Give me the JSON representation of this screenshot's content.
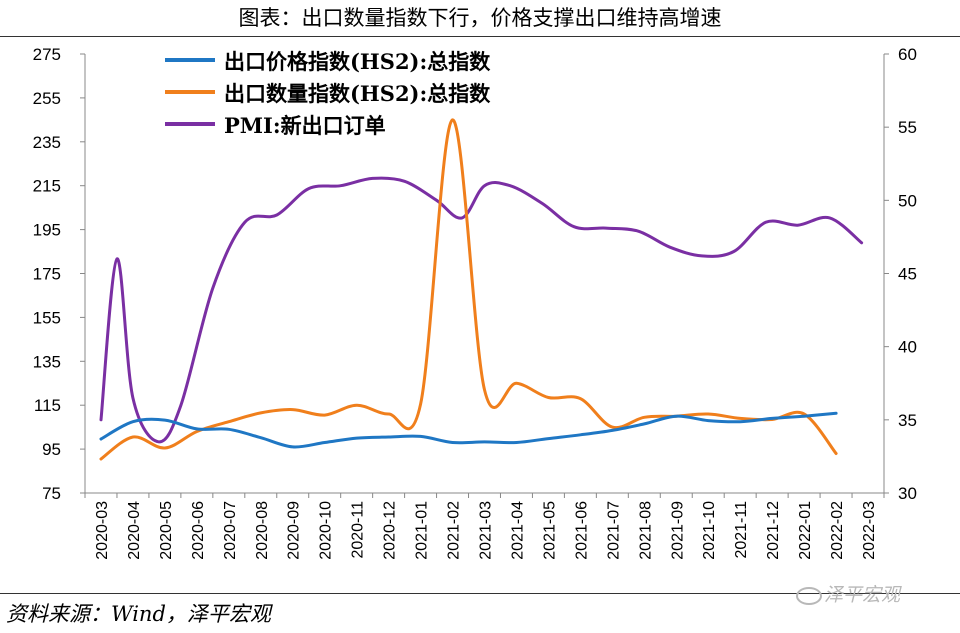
{
  "title": "图表：出口数量指数下行，价格支撑出口维持高增速",
  "source": "资料来源：Wind，泽平宏观",
  "watermark": "泽平宏观",
  "chart_data": {
    "type": "line",
    "categories": [
      "2020-03",
      "2020-04",
      "2020-05",
      "2020-06",
      "2020-07",
      "2020-08",
      "2020-09",
      "2020-10",
      "2020-11",
      "2020-12",
      "2021-01",
      "2021-02",
      "2021-03",
      "2021-04",
      "2021-05",
      "2021-06",
      "2021-07",
      "2021-08",
      "2021-09",
      "2021-10",
      "2021-11",
      "2021-12",
      "2022-01",
      "2022-02",
      "2022-03"
    ],
    "y_left": {
      "ticks": [
        75,
        95,
        115,
        135,
        155,
        175,
        195,
        215,
        235,
        255,
        275
      ],
      "range": [
        75,
        275
      ]
    },
    "y_right": {
      "ticks": [
        30,
        35,
        40,
        45,
        50,
        55,
        60
      ],
      "range": [
        30,
        60
      ]
    },
    "grid": false,
    "legend_position": "top-left",
    "series": [
      {
        "name": "出口价格指数(HS2):总指数",
        "axis": "left",
        "color": "#1f77c4",
        "x": [
          0,
          1,
          2,
          3,
          4,
          5,
          6,
          7,
          8,
          9,
          10,
          11,
          12,
          13,
          14,
          15,
          16,
          17,
          18,
          19,
          20,
          21,
          22,
          23
        ],
        "values": [
          99.6,
          107.5,
          108.2,
          104.2,
          104.0,
          100.2,
          96.0,
          98.0,
          100.0,
          100.5,
          100.8,
          98.0,
          98.3,
          98.0,
          99.8,
          101.5,
          103.5,
          106.5,
          110.0,
          108.0,
          107.5,
          109.0,
          110.0,
          111.3
        ]
      },
      {
        "name": "出口数量指数(HS2):总指数",
        "axis": "left",
        "color": "#f07f1c",
        "x": [
          0,
          1,
          2,
          3,
          4,
          5,
          6,
          7,
          8,
          9,
          10,
          11,
          12,
          13,
          14,
          15,
          16,
          17,
          18,
          19,
          20,
          21,
          22,
          23
        ],
        "values": [
          90.5,
          100.5,
          95.5,
          103.0,
          107.5,
          111.5,
          113.0,
          110.5,
          115.0,
          111.0,
          115.5,
          245.0,
          122.0,
          125.0,
          118.5,
          118.0,
          105.0,
          109.5,
          110.0,
          111.0,
          109.0,
          108.5,
          111.0,
          93.0
        ]
      },
      {
        "name": "PMI:新出口订单",
        "axis": "right",
        "color": "#7a2fa3",
        "x": [
          0,
          0.5,
          1,
          1.8,
          2.5,
          3.5,
          4.5,
          5.5,
          6.5,
          7.5,
          8.5,
          9.5,
          10.5,
          11.3,
          12,
          12.8,
          13.8,
          14.8,
          15.8,
          16.8,
          17.8,
          18.8,
          19.8,
          20.8,
          21.8,
          22.8,
          23.8
        ],
        "values": [
          35,
          46,
          36.5,
          33.5,
          36,
          44,
          48.5,
          49,
          50.8,
          51,
          51.5,
          51.3,
          50,
          48.8,
          51,
          51,
          49.8,
          48.2,
          48.1,
          47.9,
          46.8,
          46.2,
          46.5,
          48.5,
          48.3,
          48.8,
          47.1
        ]
      }
    ]
  }
}
